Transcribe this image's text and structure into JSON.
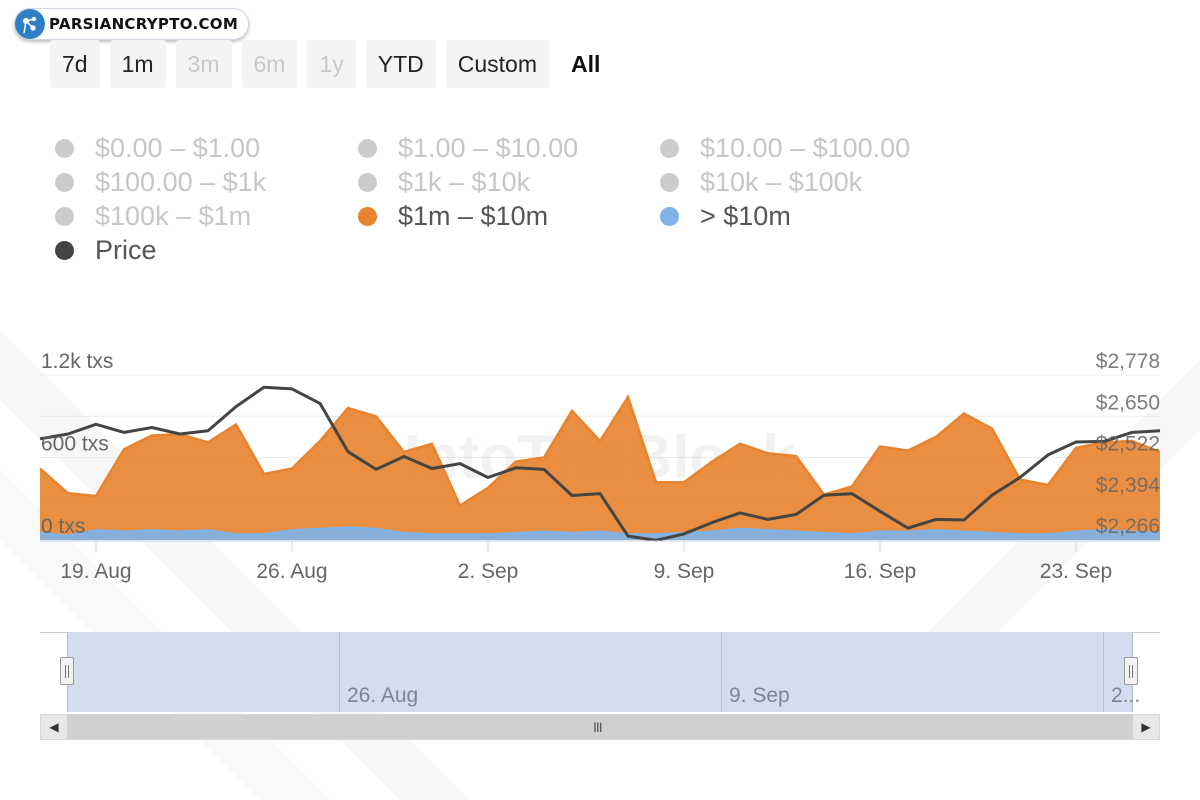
{
  "brand": {
    "logo_text": "PARSIANCRYPTO.COM",
    "watermark": "IntoTheBlock"
  },
  "range_buttons": [
    {
      "label": "7d",
      "state": "enabled"
    },
    {
      "label": "1m",
      "state": "enabled"
    },
    {
      "label": "3m",
      "state": "disabled"
    },
    {
      "label": "6m",
      "state": "disabled"
    },
    {
      "label": "1y",
      "state": "disabled"
    },
    {
      "label": "YTD",
      "state": "enabled"
    },
    {
      "label": "Custom",
      "state": "enabled"
    },
    {
      "label": "All",
      "state": "active"
    }
  ],
  "legend": [
    {
      "label": "$0.00 – $1.00",
      "color": "#cccccc",
      "visible": false
    },
    {
      "label": "$1.00 – $10.00",
      "color": "#cccccc",
      "visible": false
    },
    {
      "label": "$10.00 – $100.00",
      "color": "#cccccc",
      "visible": false
    },
    {
      "label": "$100.00 – $1k",
      "color": "#cccccc",
      "visible": false
    },
    {
      "label": "$1k – $10k",
      "color": "#cccccc",
      "visible": false
    },
    {
      "label": "$10k – $100k",
      "color": "#cccccc",
      "visible": false
    },
    {
      "label": "$100k – $1m",
      "color": "#cccccc",
      "visible": false
    },
    {
      "label": "$1m – $10m",
      "color": "#e8832e",
      "visible": true
    },
    {
      "label": "> $10m",
      "color": "#7fb3e8",
      "visible": true
    },
    {
      "label": "Price",
      "color": "#444444",
      "visible": true
    }
  ],
  "chart_data": {
    "type": "area",
    "x": [
      17,
      18,
      19,
      20,
      21,
      22,
      23,
      24,
      25,
      26,
      27,
      28,
      29,
      30,
      31,
      32,
      33,
      34,
      35,
      36,
      37,
      38,
      39,
      40,
      41,
      42,
      43,
      44,
      45,
      46,
      47,
      48,
      49,
      50,
      51,
      52,
      53,
      54,
      55,
      56,
      57
    ],
    "x_tick_labels": [
      {
        "x": 19,
        "label": "19. Aug"
      },
      {
        "x": 26,
        "label": "26. Aug"
      },
      {
        "x": 33,
        "label": "2. Sep"
      },
      {
        "x": 40,
        "label": "9. Sep"
      },
      {
        "x": 47,
        "label": "16. Sep"
      },
      {
        "x": 54,
        "label": "23. Sep"
      }
    ],
    "y_left": {
      "ticks": [
        "0 txs",
        "600 txs",
        "1.2k txs"
      ],
      "ylim": [
        0,
        1200
      ]
    },
    "y_right": {
      "ticks": [
        "$2,266",
        "$2,394",
        "$2,522",
        "$2,650",
        "$2,778"
      ],
      "ylim": [
        2266,
        2778
      ]
    },
    "series": [
      {
        "name": "$1m – $10m",
        "color": "#e8832e",
        "axis": "left",
        "type": "area",
        "values": [
          520,
          340,
          320,
          660,
          760,
          770,
          710,
          840,
          480,
          520,
          720,
          960,
          900,
          640,
          700,
          250,
          380,
          570,
          600,
          940,
          720,
          1040,
          420,
          420,
          570,
          700,
          630,
          610,
          330,
          390,
          680,
          650,
          750,
          920,
          810,
          440,
          400,
          670,
          710,
          720,
          640
        ]
      },
      {
        "name": "> $10m",
        "color": "#7fb3e8",
        "axis": "left",
        "type": "area",
        "values": [
          50,
          30,
          70,
          60,
          70,
          60,
          70,
          40,
          40,
          70,
          80,
          90,
          80,
          50,
          40,
          40,
          40,
          50,
          60,
          50,
          60,
          40,
          40,
          50,
          60,
          80,
          70,
          60,
          50,
          40,
          60,
          60,
          70,
          60,
          50,
          40,
          40,
          60,
          70,
          60,
          50
        ]
      },
      {
        "name": "Price",
        "color": "#444444",
        "axis": "right",
        "type": "line",
        "values": [
          2580,
          2595,
          2625,
          2600,
          2615,
          2595,
          2605,
          2680,
          2740,
          2735,
          2690,
          2540,
          2485,
          2525,
          2488,
          2503,
          2460,
          2490,
          2485,
          2404,
          2410,
          2278,
          2265,
          2285,
          2320,
          2350,
          2330,
          2345,
          2405,
          2410,
          2355,
          2303,
          2330,
          2328,
          2405,
          2460,
          2530,
          2570,
          2572,
          2600,
          2605
        ]
      }
    ]
  },
  "navigator": {
    "labels": [
      "26. Aug",
      "9. Sep",
      "2..."
    ]
  },
  "scrollbar": {
    "grip": "III"
  }
}
